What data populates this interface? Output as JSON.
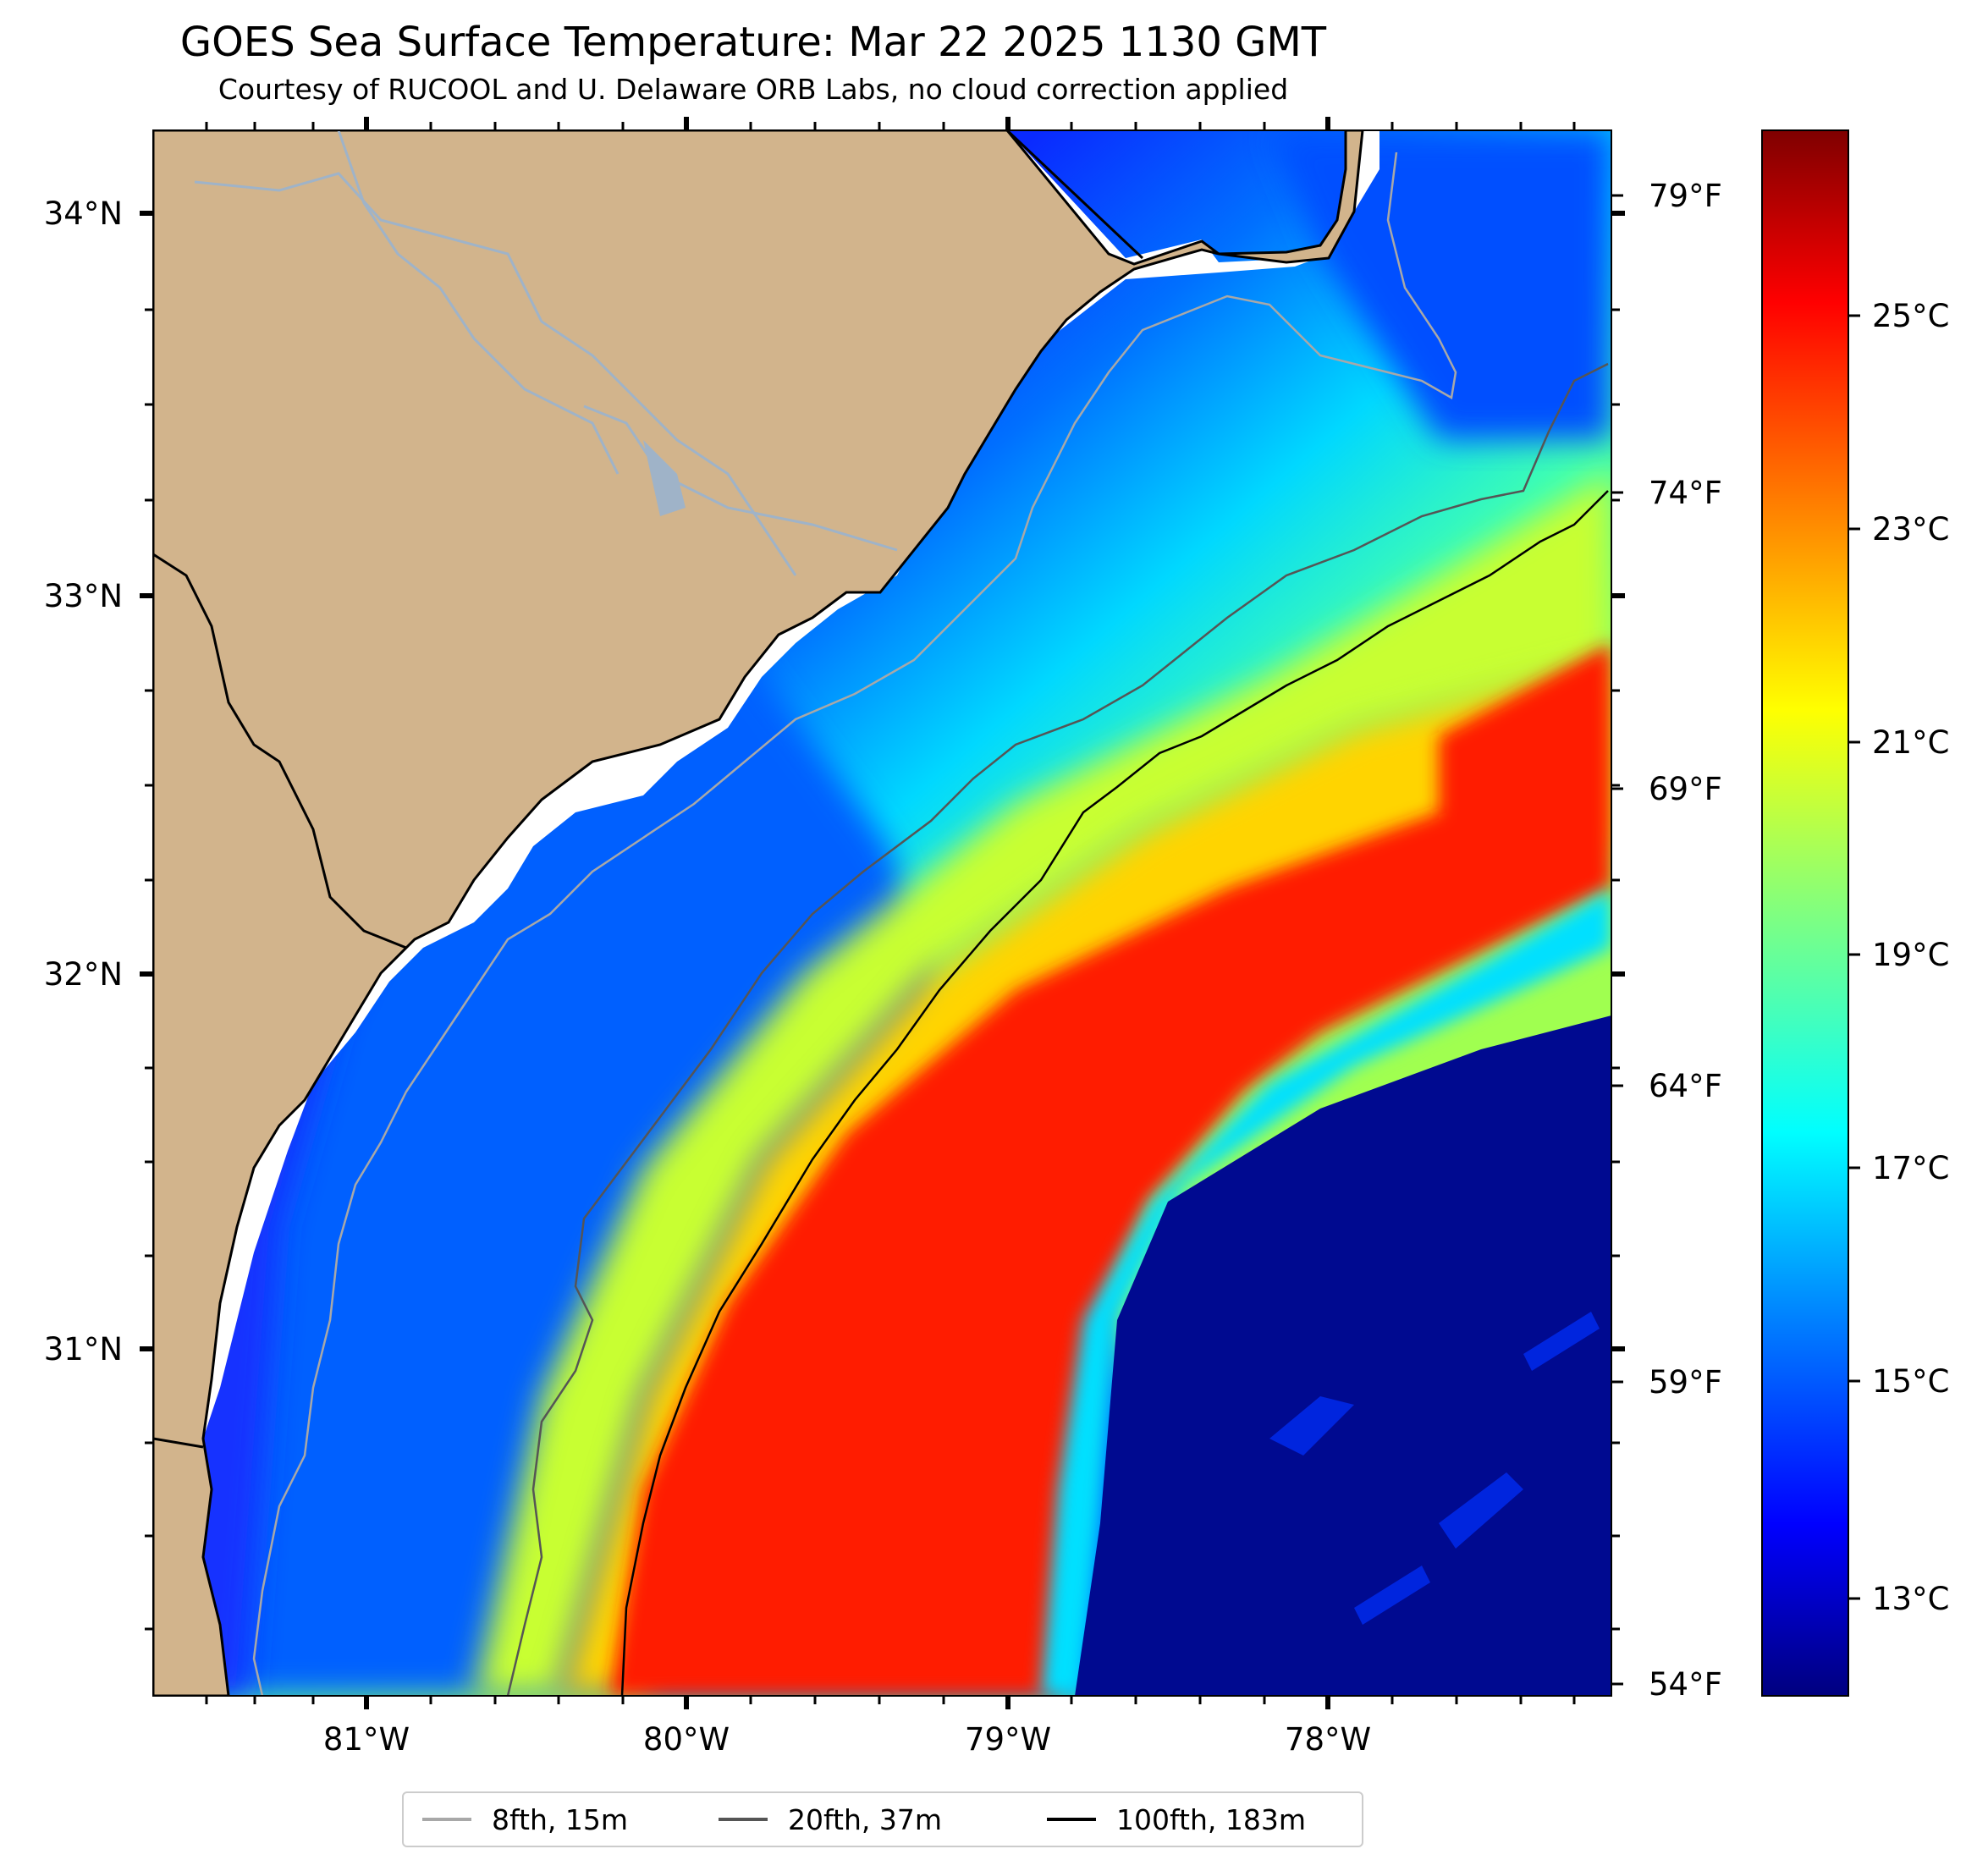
{
  "title": "GOES Sea Surface Temperature: Mar 22 2025 1130 GMT",
  "subtitle": "Courtesy of RUCOOL and U. Delaware ORB Labs, no cloud correction applied",
  "axes": {
    "latitude_labels": [
      "34°N",
      "33°N",
      "32°N",
      "31°N"
    ],
    "longitude_labels": [
      "81°W",
      "80°W",
      "79°W",
      "78°W"
    ],
    "fahrenheit_labels": [
      "79°F",
      "74°F",
      "69°F",
      "64°F",
      "59°F",
      "54°F"
    ]
  },
  "colorbar": {
    "labels": [
      "25°C",
      "23°C",
      "21°C",
      "19°C",
      "17°C",
      "15°C",
      "13°C"
    ],
    "colors": [
      "#00007f",
      "#0000ff",
      "#0080ff",
      "#00ffff",
      "#80ff80",
      "#ffff00",
      "#ff8000",
      "#ff0000",
      "#7f0000"
    ]
  },
  "legend": {
    "items": [
      {
        "label": "8fth, 15m",
        "color": "#a8a8a8"
      },
      {
        "label": "20fth, 37m",
        "color": "#555555"
      },
      {
        "label": "100fth, 183m",
        "color": "#000000"
      }
    ]
  },
  "colors": {
    "land": "#d2b48c",
    "river": "#9fb3c8",
    "shelf_cold": "#1f3dff",
    "gulf_stream": "#ff1a00",
    "offshore_cold": "#00007f"
  }
}
